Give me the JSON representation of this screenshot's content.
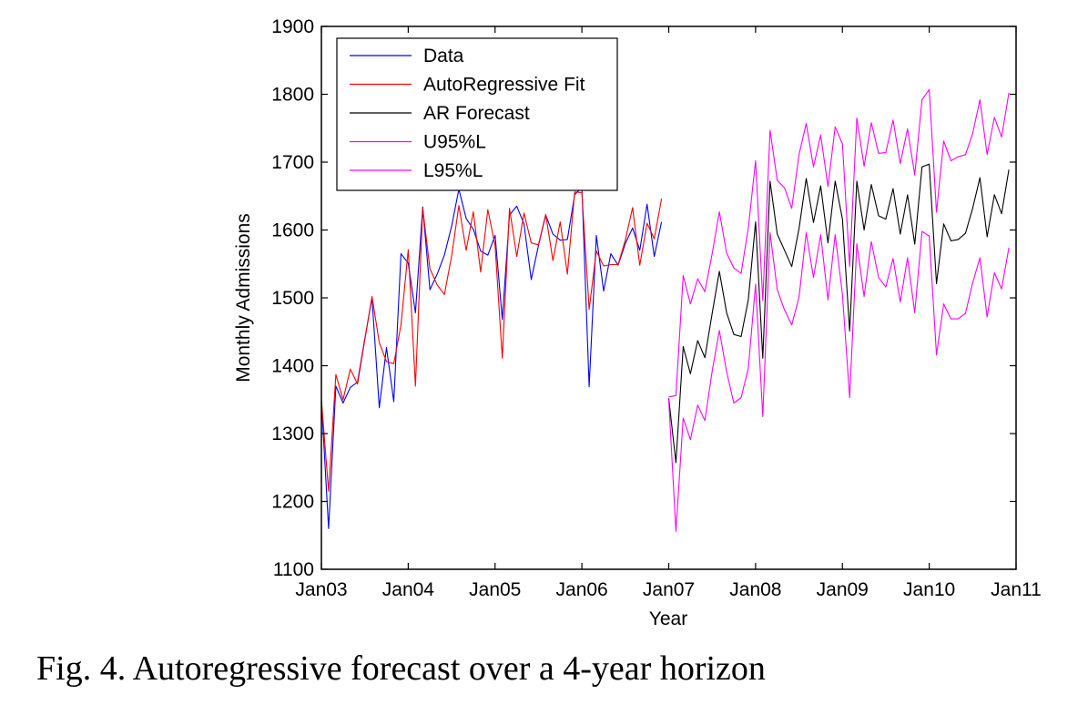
{
  "caption": "Fig. 4.  Autoregressive forecast over a 4-year horizon",
  "chart_data": {
    "type": "line",
    "title": "",
    "xlabel": "Year",
    "ylabel": "Monthly Admissions",
    "ylim": [
      1100,
      1900
    ],
    "yticks": [
      1100,
      1200,
      1300,
      1400,
      1500,
      1600,
      1700,
      1800,
      1900
    ],
    "xlim": [
      0,
      96
    ],
    "xticks": [
      {
        "x": 0,
        "label": "Jan03"
      },
      {
        "x": 12,
        "label": "Jan04"
      },
      {
        "x": 24,
        "label": "Jan05"
      },
      {
        "x": 36,
        "label": "Jan06"
      },
      {
        "x": 48,
        "label": "Jan07"
      },
      {
        "x": 60,
        "label": "Jan08"
      },
      {
        "x": 72,
        "label": "Jan09"
      },
      {
        "x": 84,
        "label": "Jan10"
      },
      {
        "x": 96,
        "label": "Jan11"
      }
    ],
    "grid": false,
    "legend_position": "top-left",
    "series": [
      {
        "name": "Data",
        "color": "#0000ff",
        "x0": 0,
        "values": [
          1350,
          1160,
          1370,
          1345,
          1368,
          1376,
          1440,
          1500,
          1338,
          1427,
          1347,
          1565,
          1551,
          1478,
          1634,
          1512,
          1535,
          1563,
          1606,
          1660,
          1617,
          1601,
          1569,
          1563,
          1592,
          1468,
          1622,
          1635,
          1609,
          1527,
          1577,
          1622,
          1594,
          1585,
          1586,
          1652,
          1663,
          1369,
          1592,
          1510,
          1565,
          1548,
          1580,
          1603,
          1570,
          1638,
          1561,
          1612
        ]
      },
      {
        "name": "AutoRegressive Fit",
        "color": "#ff0000",
        "x0": 0,
        "values": [
          1350,
          1215,
          1387,
          1350,
          1395,
          1373,
          1438,
          1502,
          1434,
          1406,
          1403,
          1460,
          1571,
          1370,
          1632,
          1543,
          1519,
          1505,
          1562,
          1636,
          1570,
          1627,
          1538,
          1630,
          1577,
          1411,
          1632,
          1561,
          1625,
          1581,
          1578,
          1623,
          1555,
          1612,
          1535,
          1656,
          1655,
          1483,
          1569,
          1547,
          1549,
          1549,
          1585,
          1633,
          1548,
          1610,
          1587,
          1646
        ]
      },
      {
        "name": "AR Forecast",
        "color": "#000000",
        "x0": 48,
        "values": [
          1352,
          1257,
          1428,
          1388,
          1437,
          1412,
          1477,
          1539,
          1478,
          1446,
          1443,
          1497,
          1612,
          1411,
          1672,
          1594,
          1570,
          1546,
          1602,
          1676,
          1611,
          1665,
          1581,
          1672,
          1616,
          1451,
          1672,
          1600,
          1667,
          1621,
          1616,
          1661,
          1594,
          1652,
          1579,
          1693,
          1697,
          1521,
          1609,
          1584,
          1586,
          1595,
          1632,
          1677,
          1590,
          1652,
          1624,
          1689
        ]
      },
      {
        "name": "U95%L",
        "color": "#ff00ff",
        "x0": 48,
        "values": [
          1354,
          1356,
          1533,
          1491,
          1528,
          1509,
          1565,
          1627,
          1566,
          1544,
          1536,
          1603,
          1702,
          1496,
          1747,
          1673,
          1662,
          1632,
          1711,
          1757,
          1693,
          1740,
          1664,
          1752,
          1727,
          1546,
          1765,
          1694,
          1758,
          1713,
          1714,
          1762,
          1698,
          1749,
          1681,
          1792,
          1807,
          1626,
          1731,
          1702,
          1708,
          1711,
          1742,
          1792,
          1711,
          1766,
          1737,
          1802
        ]
      },
      {
        "name": "L95%L",
        "color": "#ff00ff",
        "x0": 48,
        "values": [
          1350,
          1156,
          1323,
          1291,
          1342,
          1319,
          1392,
          1452,
          1391,
          1345,
          1353,
          1396,
          1520,
          1325,
          1596,
          1512,
          1482,
          1460,
          1501,
          1596,
          1530,
          1593,
          1497,
          1593,
          1505,
          1353,
          1580,
          1502,
          1583,
          1530,
          1516,
          1558,
          1494,
          1559,
          1478,
          1598,
          1591,
          1416,
          1491,
          1469,
          1469,
          1477,
          1522,
          1559,
          1472,
          1537,
          1513,
          1574
        ]
      }
    ]
  }
}
